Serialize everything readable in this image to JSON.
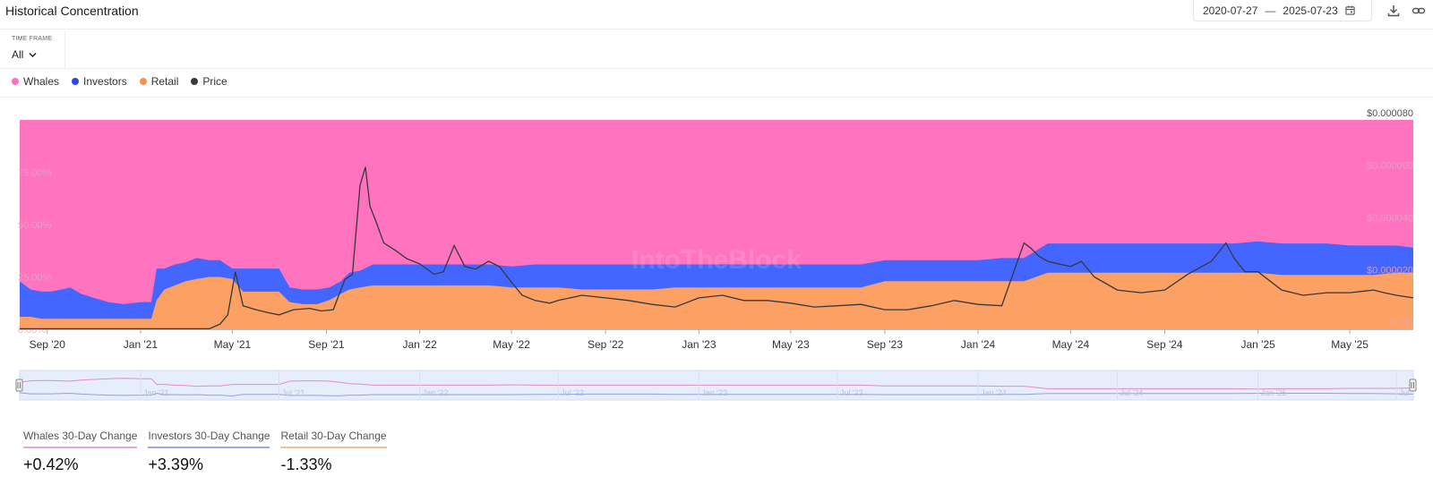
{
  "header": {
    "title": "Historical Concentration",
    "date_from": "2020-07-27",
    "date_sep": "—",
    "date_to": "2025-07-23",
    "icons": [
      "calendar-icon",
      "download-icon",
      "link-icon"
    ]
  },
  "timeframe": {
    "label": "TIME FRAME",
    "value": "All"
  },
  "legend": [
    {
      "label": "Whales",
      "color": "#ff6fbf"
    },
    {
      "label": "Investors",
      "color": "#2a45f5"
    },
    {
      "label": "Retail",
      "color": "#f5924e"
    },
    {
      "label": "Price",
      "color": "#3a3a3a"
    }
  ],
  "watermark": "IntoTheBlock",
  "colors": {
    "whales_area": "#ff73bf",
    "investors_area": "#4266ff",
    "retail_area": "#fca064",
    "price_line": "#383838",
    "navigator_bg": "#e6edfb"
  },
  "chart_data": {
    "type": "area",
    "x_start": "2020-07-27",
    "x_end": "2025-07-23",
    "x_ticks": [
      "Sep '20",
      "Jan '21",
      "May '21",
      "Sep '21",
      "Jan '22",
      "May '22",
      "Sep '22",
      "Jan '23",
      "May '23",
      "Sep '23",
      "Jan '24",
      "May '24",
      "Sep '24",
      "Jan '25",
      "May '25"
    ],
    "left_axis": {
      "ticks": [
        "0.00%",
        "25.00%",
        "50.00%",
        "75.00%"
      ],
      "ylim": [
        0,
        100
      ]
    },
    "right_axis": {
      "ticks": [
        "$0.00",
        "$0.000020",
        "$0.000040",
        "$0.000060",
        "$0.000080"
      ],
      "ylim": [
        0,
        8e-05
      ]
    },
    "navigator_ticks": [
      "Jan '21",
      "Jul '21",
      "Jan '22",
      "Jul '22",
      "Jan '23",
      "Jul '23",
      "Jan '24",
      "Jul '24",
      "Jan '25",
      "Jul"
    ],
    "dates": [
      "2020-07-27",
      "2020-08-10",
      "2020-08-25",
      "2020-09-05",
      "2020-09-20",
      "2020-10-01",
      "2020-10-15",
      "2020-11-01",
      "2020-11-20",
      "2020-12-10",
      "2021-01-01",
      "2021-01-15",
      "2021-01-22",
      "2021-02-01",
      "2021-02-15",
      "2021-03-01",
      "2021-03-15",
      "2021-04-01",
      "2021-04-15",
      "2021-05-01",
      "2021-05-15",
      "2021-06-01",
      "2021-06-15",
      "2021-07-01",
      "2021-07-15",
      "2021-08-01",
      "2021-08-20",
      "2021-09-05",
      "2021-09-20",
      "2021-10-01",
      "2021-10-15",
      "2021-11-01",
      "2021-12-01",
      "2022-01-01",
      "2022-02-01",
      "2022-03-01",
      "2022-04-01",
      "2022-05-01",
      "2022-06-01",
      "2022-07-01",
      "2022-08-01",
      "2022-09-01",
      "2022-10-01",
      "2022-11-01",
      "2022-12-01",
      "2023-01-01",
      "2023-02-01",
      "2023-03-01",
      "2023-04-01",
      "2023-05-01",
      "2023-06-01",
      "2023-07-01",
      "2023-08-01",
      "2023-09-01",
      "2023-10-01",
      "2023-11-01",
      "2023-12-01",
      "2024-01-01",
      "2024-02-01",
      "2024-03-01",
      "2024-04-01",
      "2024-05-01",
      "2024-06-01",
      "2024-07-01",
      "2024-08-01",
      "2024-09-01",
      "2024-10-01",
      "2024-11-01",
      "2024-12-01",
      "2025-01-01",
      "2025-02-01",
      "2025-03-01",
      "2025-04-01",
      "2025-05-01",
      "2025-06-01",
      "2025-07-01",
      "2025-07-23"
    ],
    "series": [
      {
        "name": "Retail",
        "values": [
          6,
          6,
          5,
          5,
          5,
          5,
          5,
          5,
          5,
          5,
          5,
          5,
          14,
          19,
          21,
          23,
          24,
          25,
          25,
          24,
          18,
          18,
          18,
          18,
          13,
          12,
          12,
          14,
          17,
          19,
          20,
          21,
          21,
          21,
          21,
          21,
          21,
          20,
          20,
          20,
          19,
          19,
          19,
          19,
          20,
          20,
          20,
          20,
          20,
          20,
          20,
          20,
          20,
          23,
          23,
          23,
          23,
          23,
          23,
          23,
          27,
          27,
          27,
          27,
          27,
          27,
          27,
          27,
          27,
          27,
          26,
          26,
          26,
          26,
          26,
          27,
          27
        ]
      },
      {
        "name": "Investors",
        "values": [
          17,
          13,
          13,
          13,
          14,
          15,
          12,
          10,
          8,
          7,
          8,
          8,
          15,
          10,
          10,
          9,
          10,
          8,
          8,
          5,
          11,
          11,
          11,
          11,
          7,
          7,
          7,
          6,
          6,
          8,
          8,
          10,
          10,
          10,
          10,
          10,
          10,
          10,
          11,
          11,
          12,
          12,
          12,
          12,
          11,
          11,
          11,
          11,
          11,
          11,
          11,
          11,
          11,
          10,
          10,
          10,
          10,
          10,
          11,
          11,
          14,
          14,
          14,
          14,
          14,
          14,
          14,
          14,
          14,
          15,
          15,
          15,
          15,
          14,
          14,
          13,
          12
        ]
      },
      {
        "name": "Whales",
        "values": [
          77,
          81,
          82,
          82,
          81,
          80,
          83,
          85,
          87,
          88,
          87,
          87,
          71,
          71,
          69,
          68,
          66,
          67,
          67,
          71,
          71,
          71,
          71,
          71,
          80,
          81,
          81,
          80,
          77,
          73,
          72,
          69,
          69,
          69,
          69,
          69,
          69,
          70,
          69,
          69,
          69,
          69,
          69,
          69,
          69,
          69,
          69,
          69,
          69,
          69,
          69,
          69,
          69,
          67,
          67,
          67,
          67,
          67,
          66,
          66,
          59,
          59,
          59,
          59,
          59,
          59,
          59,
          59,
          59,
          58,
          59,
          59,
          59,
          60,
          60,
          60,
          61
        ]
      }
    ],
    "price": {
      "name": "Price",
      "dates": [
        "2020-07-27",
        "2021-02-01",
        "2021-04-01",
        "2021-04-15",
        "2021-04-25",
        "2021-05-05",
        "2021-05-15",
        "2021-06-01",
        "2021-06-15",
        "2021-07-01",
        "2021-07-20",
        "2021-08-10",
        "2021-08-25",
        "2021-09-10",
        "2021-09-25",
        "2021-10-05",
        "2021-10-15",
        "2021-10-22",
        "2021-10-28",
        "2021-11-05",
        "2021-11-15",
        "2021-12-01",
        "2021-12-15",
        "2022-01-01",
        "2022-01-20",
        "2022-02-01",
        "2022-02-15",
        "2022-03-01",
        "2022-03-15",
        "2022-04-01",
        "2022-04-15",
        "2022-05-01",
        "2022-05-15",
        "2022-06-01",
        "2022-06-20",
        "2022-07-01",
        "2022-08-01",
        "2022-09-01",
        "2022-10-01",
        "2022-11-01",
        "2022-12-01",
        "2023-01-01",
        "2023-02-01",
        "2023-03-01",
        "2023-04-01",
        "2023-05-01",
        "2023-06-01",
        "2023-07-01",
        "2023-08-01",
        "2023-09-01",
        "2023-10-01",
        "2023-11-01",
        "2023-12-01",
        "2024-01-01",
        "2024-02-01",
        "2024-03-01",
        "2024-03-10",
        "2024-03-20",
        "2024-04-01",
        "2024-04-15",
        "2024-05-01",
        "2024-05-15",
        "2024-06-01",
        "2024-07-01",
        "2024-08-01",
        "2024-09-01",
        "2024-10-01",
        "2024-11-01",
        "2024-11-20",
        "2024-12-01",
        "2024-12-15",
        "2025-01-01",
        "2025-02-01",
        "2025-03-01",
        "2025-04-01",
        "2025-05-01",
        "2025-06-01",
        "2025-06-15",
        "2025-07-01",
        "2025-07-23"
      ],
      "values": [
        2e-07,
        2e-07,
        2e-07,
        2e-06,
        5.5e-06,
        2.2e-05,
        9e-06,
        7.5e-06,
        6.5e-06,
        5.5e-06,
        7.5e-06,
        8e-06,
        7e-06,
        7.5e-06,
        1.9e-05,
        2.1e-05,
        5.5e-05,
        6.2e-05,
        4.7e-05,
        4.1e-05,
        3.3e-05,
        3e-05,
        2.7e-05,
        2.5e-05,
        2.1e-05,
        2.2e-05,
        3.2e-05,
        2.4e-05,
        2.3e-05,
        2.6e-05,
        2.4e-05,
        1.8e-05,
        1.3e-05,
        1.1e-05,
        1e-05,
        1.1e-05,
        1.3e-05,
        1.2e-05,
        1.1e-05,
        9.5e-06,
        8.5e-06,
        1.2e-05,
        1.3e-05,
        1.1e-05,
        1.1e-05,
        1e-05,
        8.5e-06,
        9e-06,
        9.5e-06,
        7.5e-06,
        7.5e-06,
        9e-06,
        1.1e-05,
        9.5e-06,
        9e-06,
        3.3e-05,
        3.1e-05,
        2.8e-05,
        2.6e-05,
        2.5e-05,
        2.4e-05,
        2.6e-05,
        2e-05,
        1.5e-05,
        1.4e-05,
        1.5e-05,
        2.1e-05,
        2.6e-05,
        3.3e-05,
        2.7e-05,
        2.2e-05,
        2.2e-05,
        1.5e-05,
        1.3e-05,
        1.4e-05,
        1.4e-05,
        1.5e-05,
        1.4e-05,
        1.3e-05,
        1.2e-05
      ]
    }
  },
  "kpis": [
    {
      "label": "Whales 30-Day Change",
      "value": "+0.42%",
      "underline": "#e7a6d6"
    },
    {
      "label": "Investors 30-Day Change",
      "value": "+3.39%",
      "underline": "#9fa9e8"
    },
    {
      "label": "Retail 30-Day Change",
      "value": "-1.33%",
      "underline": "#f0c09a"
    }
  ]
}
